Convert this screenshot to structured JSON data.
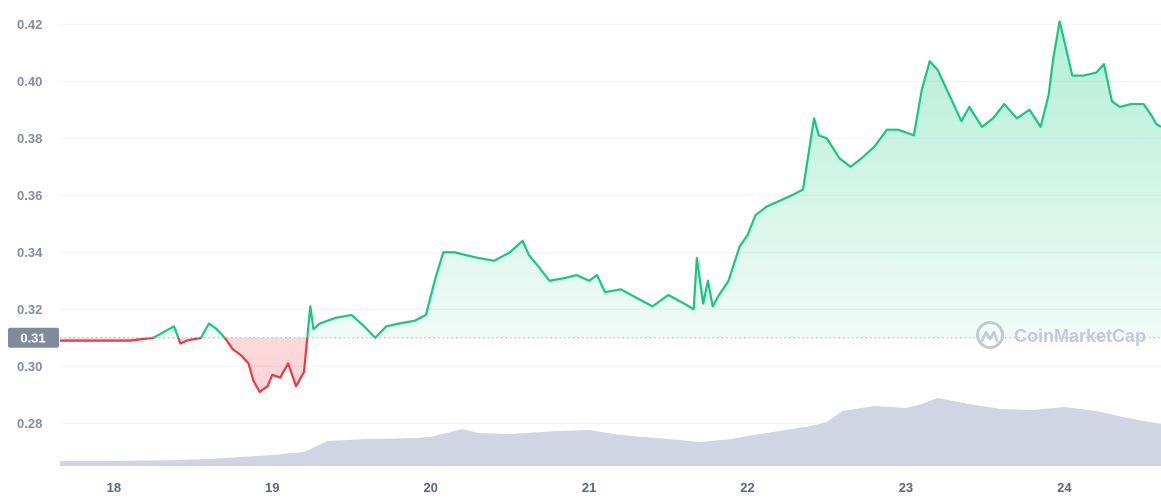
{
  "chart_data": {
    "type": "area",
    "reference_value": 0.31,
    "reference_label": "0.31",
    "ylim": [
      0.265,
      0.425
    ],
    "xlim": [
      17.66,
      24.61
    ],
    "y_ticks": [
      {
        "value": 0.28,
        "label": "0.28"
      },
      {
        "value": 0.3,
        "label": "0.30"
      },
      {
        "value": 0.32,
        "label": "0.32"
      },
      {
        "value": 0.34,
        "label": "0.34"
      },
      {
        "value": 0.36,
        "label": "0.36"
      },
      {
        "value": 0.38,
        "label": "0.38"
      },
      {
        "value": 0.4,
        "label": "0.40"
      },
      {
        "value": 0.42,
        "label": "0.42"
      }
    ],
    "x_ticks": [
      {
        "value": 18,
        "label": "18"
      },
      {
        "value": 19,
        "label": "19"
      },
      {
        "value": 20,
        "label": "20"
      },
      {
        "value": 21,
        "label": "21"
      },
      {
        "value": 22,
        "label": "22"
      },
      {
        "value": 23,
        "label": "23"
      },
      {
        "value": 24,
        "label": "24"
      }
    ],
    "price": {
      "x": [
        17.66,
        17.8,
        17.95,
        18.1,
        18.25,
        18.38,
        18.42,
        18.46,
        18.55,
        18.6,
        18.65,
        18.7,
        18.75,
        18.8,
        18.85,
        18.88,
        18.92,
        18.97,
        19.0,
        19.05,
        19.1,
        19.15,
        19.2,
        19.24,
        19.26,
        19.3,
        19.4,
        19.5,
        19.58,
        19.65,
        19.72,
        19.8,
        19.9,
        19.97,
        20.03,
        20.08,
        20.15,
        20.22,
        20.3,
        20.4,
        20.5,
        20.58,
        20.62,
        20.68,
        20.75,
        20.85,
        20.92,
        21.0,
        21.05,
        21.1,
        21.2,
        21.3,
        21.4,
        21.5,
        21.6,
        21.66,
        21.68,
        21.72,
        21.75,
        21.78,
        21.82,
        21.88,
        21.95,
        22.0,
        22.05,
        22.12,
        22.2,
        22.28,
        22.35,
        22.42,
        22.45,
        22.5,
        22.58,
        22.65,
        22.72,
        22.8,
        22.88,
        22.95,
        23.05,
        23.1,
        23.15,
        23.2,
        23.25,
        23.3,
        23.35,
        23.4,
        23.48,
        23.55,
        23.62,
        23.7,
        23.78,
        23.85,
        23.9,
        23.93,
        23.97,
        24.0,
        24.05,
        24.12,
        24.2,
        24.25,
        24.3,
        24.35,
        24.42,
        24.5,
        24.55,
        24.58,
        24.61
      ],
      "y": [
        0.309,
        0.309,
        0.309,
        0.309,
        0.31,
        0.314,
        0.308,
        0.309,
        0.31,
        0.315,
        0.313,
        0.31,
        0.306,
        0.304,
        0.301,
        0.295,
        0.291,
        0.293,
        0.297,
        0.296,
        0.301,
        0.293,
        0.298,
        0.321,
        0.313,
        0.315,
        0.317,
        0.318,
        0.314,
        0.31,
        0.314,
        0.315,
        0.316,
        0.318,
        0.331,
        0.34,
        0.34,
        0.339,
        0.338,
        0.337,
        0.34,
        0.344,
        0.339,
        0.335,
        0.33,
        0.331,
        0.332,
        0.33,
        0.332,
        0.326,
        0.327,
        0.324,
        0.321,
        0.325,
        0.322,
        0.32,
        0.338,
        0.322,
        0.33,
        0.321,
        0.325,
        0.33,
        0.342,
        0.346,
        0.353,
        0.356,
        0.358,
        0.36,
        0.362,
        0.387,
        0.381,
        0.38,
        0.373,
        0.37,
        0.373,
        0.377,
        0.383,
        0.383,
        0.381,
        0.397,
        0.407,
        0.404,
        0.398,
        0.392,
        0.386,
        0.391,
        0.384,
        0.387,
        0.392,
        0.387,
        0.39,
        0.384,
        0.395,
        0.408,
        0.421,
        0.414,
        0.402,
        0.402,
        0.403,
        0.406,
        0.393,
        0.391,
        0.392,
        0.392,
        0.388,
        0.385,
        0.384
      ]
    },
    "volume": {
      "x": [
        17.66,
        18.0,
        18.4,
        18.6,
        18.8,
        19.0,
        19.2,
        19.35,
        19.6,
        19.9,
        20.0,
        20.1,
        20.2,
        20.3,
        20.5,
        20.8,
        21.0,
        21.2,
        21.5,
        21.7,
        21.9,
        22.0,
        22.2,
        22.4,
        22.5,
        22.6,
        22.8,
        23.0,
        23.1,
        23.2,
        23.4,
        23.6,
        23.8,
        24.0,
        24.2,
        24.4,
        24.61
      ],
      "level": [
        0.05,
        0.05,
        0.06,
        0.07,
        0.09,
        0.11,
        0.14,
        0.25,
        0.27,
        0.28,
        0.29,
        0.33,
        0.37,
        0.33,
        0.32,
        0.35,
        0.36,
        0.31,
        0.27,
        0.24,
        0.27,
        0.3,
        0.35,
        0.4,
        0.44,
        0.55,
        0.6,
        0.58,
        0.62,
        0.68,
        0.62,
        0.57,
        0.56,
        0.59,
        0.55,
        0.48,
        0.42
      ]
    }
  },
  "watermark": {
    "text": "CoinMarketCap",
    "icon": "coinmarketcap-logo-icon"
  },
  "colors": {
    "up": "#16c784",
    "down": "#ea3943",
    "volume": "#d1d5e3",
    "grid": "#eff2f5",
    "ref_badge": "#808a9d",
    "watermark": "#c3c9d6"
  }
}
